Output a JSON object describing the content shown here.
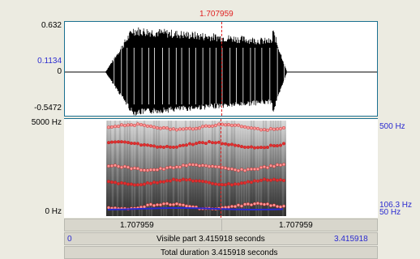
{
  "cursor_time": "1.707959",
  "waveform": {
    "y_max": "0.632",
    "y_mark": "0.1134",
    "y_zero": "0",
    "y_min": "-0.5472"
  },
  "spectrogram": {
    "freq_top": "5000 Hz",
    "freq_bottom": "0 Hz",
    "pitch_top": "500 Hz",
    "pitch_value": "106.3 Hz",
    "pitch_bottom": "50 Hz"
  },
  "bars": {
    "left_segment": "1.707959",
    "right_segment": "1.707959",
    "visible_start": "0",
    "visible_label": "Visible part 3.415918 seconds",
    "visible_end": "3.415918",
    "total_label": "Total duration 3.415918 seconds"
  },
  "colors": {
    "waveform": "#000000",
    "cursor": "#e02020",
    "formant": "#e03030",
    "pitch": "#2a2ad0"
  }
}
